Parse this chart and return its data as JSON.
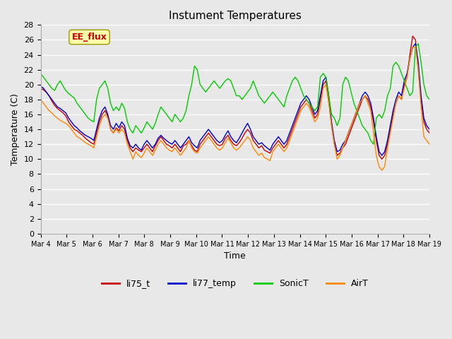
{
  "title": "Instument Temperatures",
  "xlabel": "Time",
  "ylabel": "Temperature (C)",
  "ylim": [
    0,
    28
  ],
  "yticks": [
    0,
    2,
    4,
    6,
    8,
    10,
    12,
    14,
    16,
    18,
    20,
    22,
    24,
    26,
    28
  ],
  "x_labels": [
    "Mar 4",
    "Mar 5",
    "Mar 6",
    "Mar 7",
    "Mar 8",
    "Mar 9",
    "Mar 10",
    "Mar 11",
    "Mar 12",
    "Mar 13",
    "Mar 14",
    "Mar 15",
    "Mar 16",
    "Mar 17",
    "Mar 18",
    "Mar 19"
  ],
  "annotation_text": "EE_flux",
  "annotation_color": "#cc0000",
  "annotation_bg": "#ffffaa",
  "annotation_border": "#999900",
  "colors": {
    "li75_t": "#cc0000",
    "li77_temp": "#0000cc",
    "SonicT": "#00cc00",
    "AirT": "#ff8800"
  },
  "background_color": "#e8e8e8",
  "plot_bg": "#e8e8e8",
  "grid_color": "#ffffff",
  "li75_t": [
    19.5,
    19.3,
    19.0,
    18.5,
    17.8,
    17.2,
    16.8,
    16.5,
    16.2,
    15.8,
    15.0,
    14.5,
    14.0,
    13.8,
    13.5,
    13.2,
    12.8,
    12.5,
    12.2,
    12.0,
    13.5,
    15.0,
    16.0,
    16.5,
    15.8,
    14.0,
    13.5,
    14.2,
    13.8,
    14.5,
    14.0,
    12.5,
    11.5,
    11.0,
    11.5,
    11.2,
    11.0,
    11.5,
    12.0,
    11.5,
    11.0,
    11.8,
    12.5,
    13.0,
    12.5,
    12.0,
    11.8,
    11.5,
    12.0,
    11.5,
    11.0,
    11.8,
    12.0,
    12.5,
    11.8,
    11.2,
    11.0,
    12.0,
    12.5,
    13.0,
    13.5,
    13.0,
    12.5,
    12.0,
    11.8,
    12.0,
    12.8,
    13.2,
    12.5,
    12.0,
    11.8,
    12.2,
    12.8,
    13.5,
    14.0,
    13.5,
    12.5,
    12.0,
    11.5,
    11.8,
    11.2,
    11.0,
    10.8,
    11.5,
    12.0,
    12.5,
    12.0,
    11.5,
    12.0,
    13.0,
    14.0,
    15.0,
    16.0,
    17.0,
    17.5,
    18.0,
    17.5,
    16.5,
    15.5,
    16.0,
    18.0,
    20.0,
    20.5,
    18.0,
    14.5,
    12.0,
    10.5,
    10.8,
    11.5,
    12.0,
    13.0,
    14.0,
    15.0,
    16.0,
    17.0,
    18.0,
    18.5,
    18.0,
    17.0,
    15.0,
    12.5,
    10.5,
    10.0,
    10.5,
    12.0,
    14.0,
    16.0,
    17.5,
    18.5,
    18.0,
    20.0,
    21.0,
    24.0,
    26.5,
    26.0,
    22.0,
    18.0,
    15.0,
    14.0,
    13.5
  ],
  "li77_temp": [
    19.8,
    19.5,
    19.0,
    18.5,
    18.0,
    17.5,
    17.0,
    16.8,
    16.5,
    16.2,
    15.5,
    15.0,
    14.5,
    14.2,
    13.8,
    13.5,
    13.2,
    13.0,
    12.8,
    12.5,
    14.0,
    15.5,
    16.5,
    17.0,
    16.0,
    14.5,
    14.0,
    14.8,
    14.2,
    15.0,
    14.5,
    12.8,
    11.8,
    11.5,
    12.0,
    11.5,
    11.2,
    12.0,
    12.5,
    12.0,
    11.5,
    12.0,
    12.8,
    13.2,
    12.8,
    12.5,
    12.2,
    12.0,
    12.5,
    12.0,
    11.5,
    12.0,
    12.5,
    13.0,
    12.2,
    11.8,
    11.5,
    12.5,
    13.0,
    13.5,
    14.0,
    13.5,
    13.0,
    12.5,
    12.2,
    12.5,
    13.2,
    13.8,
    13.0,
    12.5,
    12.2,
    12.8,
    13.5,
    14.2,
    14.8,
    14.0,
    13.0,
    12.5,
    12.0,
    12.2,
    11.8,
    11.5,
    11.2,
    12.0,
    12.5,
    13.0,
    12.5,
    12.0,
    12.5,
    13.5,
    14.5,
    15.5,
    16.5,
    17.5,
    18.0,
    18.5,
    18.0,
    17.0,
    16.0,
    16.5,
    18.5,
    20.5,
    21.0,
    18.5,
    15.0,
    12.5,
    11.0,
    11.2,
    12.0,
    12.5,
    13.5,
    14.5,
    15.5,
    16.5,
    17.5,
    18.5,
    19.0,
    18.5,
    17.5,
    15.5,
    13.0,
    11.0,
    10.5,
    11.0,
    12.5,
    14.5,
    16.5,
    18.0,
    19.0,
    18.5,
    20.5,
    21.5,
    23.5,
    25.0,
    25.5,
    23.0,
    18.5,
    15.5,
    14.5,
    14.0
  ],
  "SonicT": [
    21.5,
    21.0,
    20.5,
    20.0,
    19.5,
    19.2,
    20.0,
    20.5,
    19.8,
    19.2,
    18.8,
    18.5,
    18.2,
    17.5,
    17.0,
    16.5,
    16.0,
    15.5,
    15.2,
    15.0,
    18.0,
    19.5,
    20.0,
    20.5,
    19.5,
    17.5,
    16.5,
    17.0,
    16.5,
    17.5,
    16.8,
    15.0,
    14.0,
    13.5,
    14.5,
    14.0,
    13.5,
    14.2,
    15.0,
    14.5,
    14.0,
    14.8,
    16.0,
    17.0,
    16.5,
    16.0,
    15.5,
    15.0,
    16.0,
    15.5,
    15.0,
    15.5,
    16.5,
    18.5,
    20.0,
    22.5,
    22.0,
    20.0,
    19.5,
    19.0,
    19.5,
    20.0,
    20.5,
    20.0,
    19.5,
    20.0,
    20.5,
    20.8,
    20.5,
    19.5,
    18.5,
    18.5,
    18.0,
    18.5,
    19.0,
    19.5,
    20.5,
    19.5,
    18.5,
    18.0,
    17.5,
    18.0,
    18.5,
    19.0,
    18.5,
    18.0,
    17.5,
    17.0,
    18.5,
    19.5,
    20.5,
    21.0,
    20.5,
    19.5,
    18.5,
    18.0,
    17.5,
    17.0,
    16.5,
    17.0,
    21.0,
    21.5,
    21.0,
    18.5,
    16.0,
    15.5,
    14.5,
    15.5,
    20.0,
    21.0,
    20.5,
    19.0,
    17.5,
    16.5,
    15.5,
    14.5,
    14.0,
    13.5,
    12.5,
    12.0,
    15.5,
    16.0,
    15.5,
    16.5,
    18.5,
    19.5,
    22.5,
    23.0,
    22.5,
    21.5,
    20.5,
    19.5,
    18.5,
    19.0,
    25.0,
    25.5,
    23.0,
    20.0,
    18.5,
    18.0
  ],
  "AirT": [
    18.0,
    17.5,
    17.0,
    16.5,
    16.2,
    15.8,
    15.5,
    15.2,
    15.0,
    14.8,
    14.5,
    14.0,
    13.5,
    13.0,
    12.8,
    12.5,
    12.2,
    12.0,
    11.8,
    11.5,
    13.0,
    14.5,
    15.5,
    16.0,
    15.5,
    14.0,
    13.5,
    14.0,
    13.5,
    14.0,
    13.5,
    12.0,
    11.0,
    10.0,
    11.0,
    10.5,
    10.2,
    10.8,
    11.5,
    11.0,
    10.5,
    11.2,
    12.0,
    12.5,
    12.0,
    11.5,
    11.2,
    11.0,
    11.5,
    11.0,
    10.5,
    11.0,
    11.5,
    12.5,
    11.5,
    11.0,
    10.8,
    11.5,
    12.0,
    12.5,
    13.0,
    12.5,
    12.0,
    11.5,
    11.2,
    11.5,
    12.2,
    12.8,
    12.2,
    11.5,
    11.2,
    11.5,
    12.0,
    12.5,
    13.0,
    12.5,
    11.5,
    11.0,
    10.5,
    10.8,
    10.2,
    10.0,
    9.8,
    11.0,
    11.5,
    12.0,
    11.5,
    11.0,
    11.5,
    12.5,
    13.5,
    14.5,
    15.5,
    16.5,
    17.0,
    17.5,
    17.0,
    16.0,
    15.0,
    15.5,
    17.0,
    19.5,
    20.0,
    17.5,
    14.5,
    12.0,
    10.0,
    10.5,
    11.5,
    12.5,
    13.5,
    14.5,
    15.5,
    16.5,
    17.5,
    18.0,
    18.5,
    17.5,
    16.5,
    13.5,
    10.5,
    9.0,
    8.5,
    9.0,
    11.5,
    13.5,
    15.5,
    17.5,
    18.5,
    18.0,
    19.5,
    21.0,
    23.5,
    25.0,
    25.0,
    22.0,
    17.0,
    13.0,
    12.5,
    12.0
  ]
}
